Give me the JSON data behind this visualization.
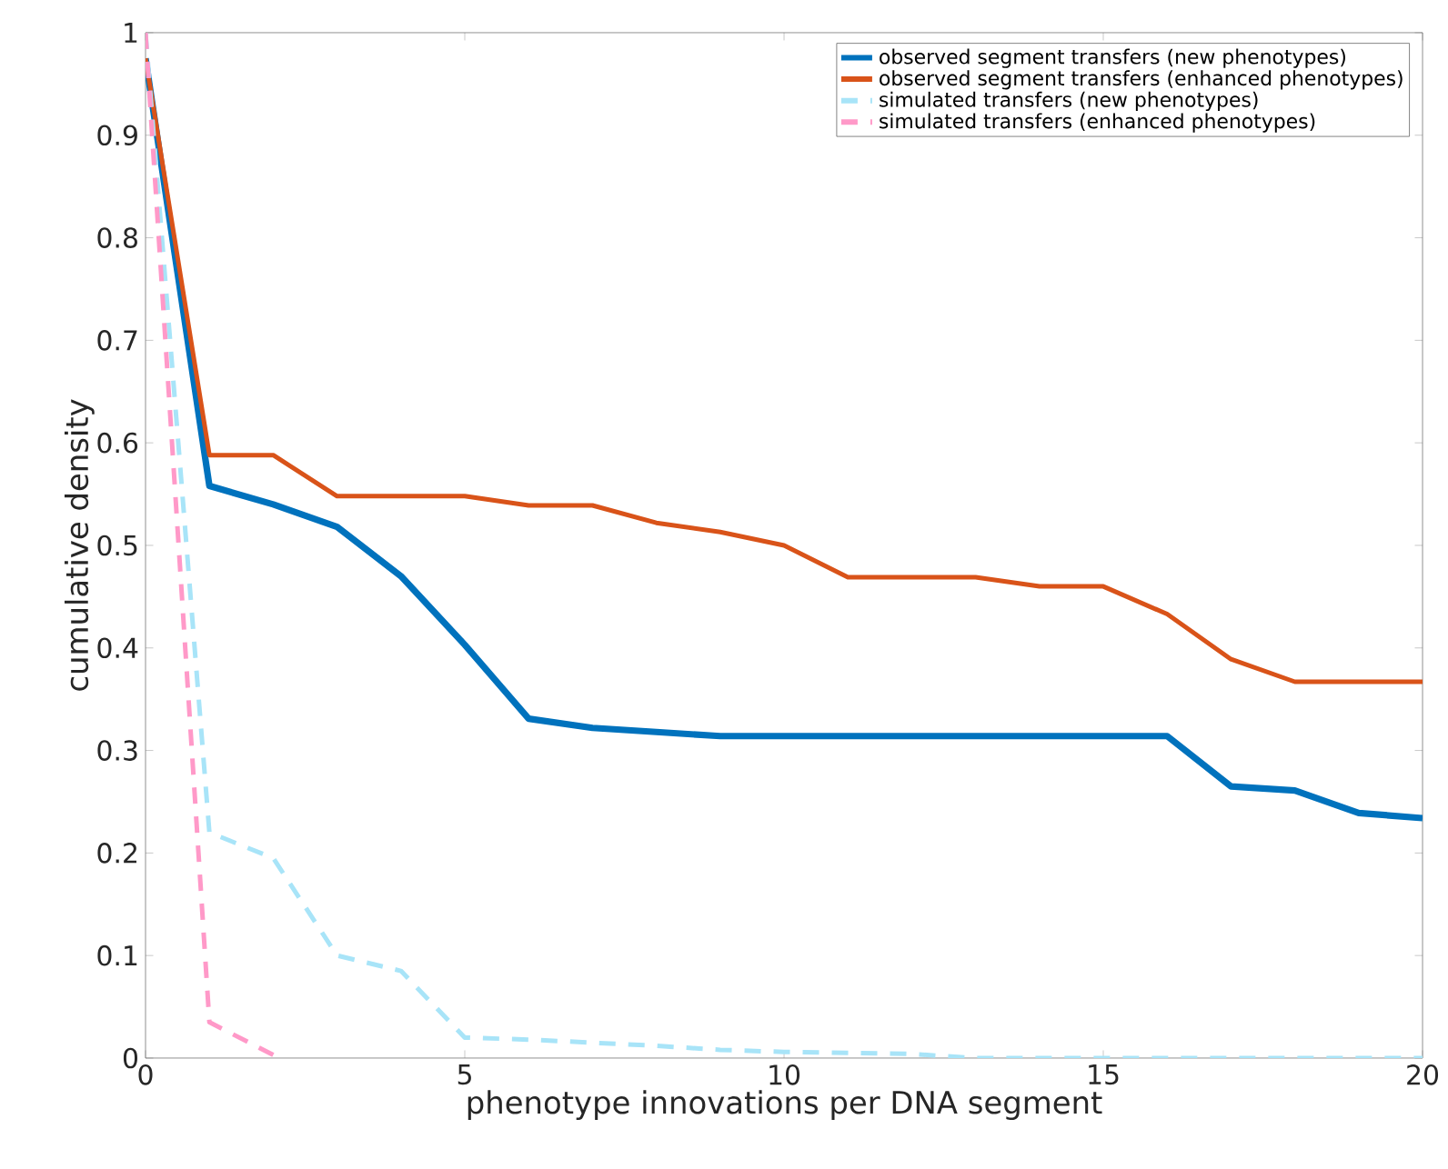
{
  "chart_data": {
    "type": "line",
    "xlabel": "phenotype innovations per DNA segment",
    "ylabel": "cumulative density",
    "xlim": [
      0,
      20
    ],
    "ylim": [
      0,
      1
    ],
    "xticks": [
      0,
      5,
      10,
      15,
      20
    ],
    "yticks": [
      0,
      0.1,
      0.2,
      0.3,
      0.4,
      0.5,
      0.6,
      0.7,
      0.8,
      0.9,
      1
    ],
    "grid": false,
    "legend": "top right",
    "marker": "none",
    "series": [
      {
        "name": "observed segment transfers (new phenotypes)",
        "color": "#0072bd",
        "line_style": "solid",
        "x": [
          0,
          1,
          2,
          3,
          4,
          5,
          6,
          7,
          8,
          9,
          10,
          11,
          12,
          13,
          14,
          15,
          16,
          17,
          18,
          19,
          20
        ],
        "values": [
          0.975,
          0.558,
          0.54,
          0.518,
          0.47,
          0.403,
          0.331,
          0.322,
          0.318,
          0.314,
          0.314,
          0.314,
          0.314,
          0.314,
          0.314,
          0.314,
          0.314,
          0.265,
          0.261,
          0.239,
          0.234
        ]
      },
      {
        "name": "observed segment transfers (enhanced phenotypes)",
        "color": "#d95319",
        "line_style": "solid",
        "x": [
          0,
          1,
          2,
          3,
          4,
          5,
          6,
          7,
          8,
          9,
          10,
          11,
          12,
          13,
          14,
          15,
          16,
          17,
          18,
          19,
          20
        ],
        "values": [
          0.975,
          0.588,
          0.588,
          0.548,
          0.548,
          0.548,
          0.539,
          0.539,
          0.522,
          0.513,
          0.5,
          0.469,
          0.469,
          0.469,
          0.46,
          0.46,
          0.433,
          0.389,
          0.367,
          0.367,
          0.367
        ]
      },
      {
        "name": "simulated transfers (new phenotypes)",
        "color": "#a8e4f8",
        "line_style": "dashed",
        "x": [
          0,
          1,
          2,
          3,
          4,
          5,
          6,
          7,
          8,
          9,
          10,
          11,
          12,
          13,
          14,
          15,
          16,
          17,
          18,
          19,
          20
        ],
        "values": [
          1,
          0.22,
          0.195,
          0.1,
          0.085,
          0.02,
          0.018,
          0.015,
          0.012,
          0.008,
          0.006,
          0.005,
          0.004,
          0,
          0,
          0,
          0,
          0,
          0,
          0,
          0
        ]
      },
      {
        "name": "simulated transfers (enhanced phenotypes)",
        "color": "#ff99c8",
        "line_style": "dashed",
        "x": [
          0,
          1,
          2
        ],
        "values": [
          1,
          0.035,
          0.003
        ]
      }
    ]
  }
}
